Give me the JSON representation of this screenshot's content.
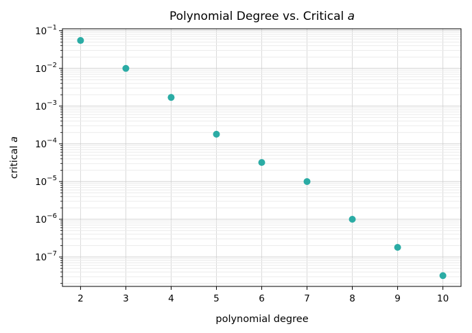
{
  "chart_data": {
    "type": "scatter",
    "title": "Polynomial Degree vs. Critical ",
    "title_var": "a",
    "xlabel": "polynomial degree",
    "ylabel": "critical ",
    "ylabel_var": "a",
    "x_scale": "linear",
    "y_scale": "log",
    "xlim": [
      1.6,
      10.4
    ],
    "ylim_exp": [
      -7.78,
      -0.95
    ],
    "x_ticks": [
      2,
      3,
      4,
      5,
      6,
      7,
      8,
      9,
      10
    ],
    "y_tick_exponents": [
      -7,
      -6,
      -5,
      -4,
      -3,
      -2,
      -1
    ],
    "y_tick_base": "10",
    "grid": true,
    "legend": "none",
    "marker_color": "#20a8a0",
    "points": [
      {
        "x": 2,
        "y": 0.055
      },
      {
        "x": 3,
        "y": 0.01
      },
      {
        "x": 4,
        "y": 0.0017
      },
      {
        "x": 5,
        "y": 0.00018
      },
      {
        "x": 6,
        "y": 3.2e-05
      },
      {
        "x": 7,
        "y": 1e-05
      },
      {
        "x": 8,
        "y": 1e-06
      },
      {
        "x": 9,
        "y": 1.8e-07
      },
      {
        "x": 10,
        "y": 3.2e-08
      }
    ]
  }
}
